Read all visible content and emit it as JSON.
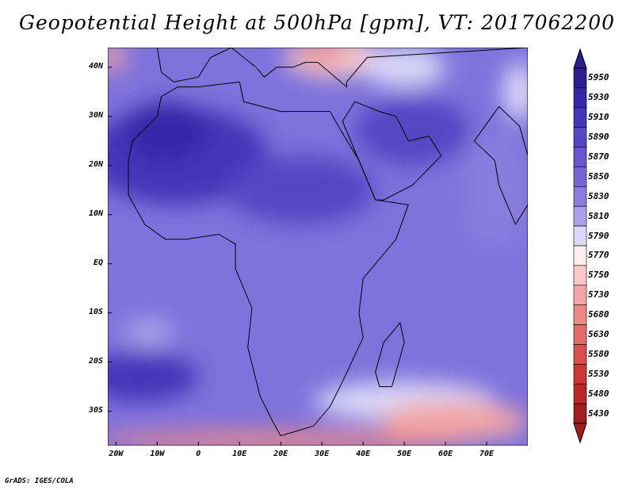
{
  "title": "Geopotential Height at 500hPa [gpm], VT: 2017062200",
  "credit": "GrADS: IGES/COLA",
  "lat_labels": [
    "40N",
    "30N",
    "20N",
    "10N",
    "EQ",
    "10S",
    "20S",
    "30S"
  ],
  "lon_labels": [
    "20W",
    "10W",
    "0",
    "10E",
    "20E",
    "30E",
    "40E",
    "50E",
    "60E",
    "70E"
  ],
  "colorbar": {
    "levels": [
      "5950",
      "5930",
      "5910",
      "5890",
      "5870",
      "5850",
      "5830",
      "5810",
      "5790",
      "5770",
      "5750",
      "5730",
      "5680",
      "5630",
      "5580",
      "5530",
      "5480",
      "5430"
    ],
    "colors": [
      "#2b1f8c",
      "#3527a8",
      "#4535b8",
      "#5546c4",
      "#6657cc",
      "#7666d3",
      "#8a7dde",
      "#a9a1e9",
      "#dcd8f7",
      "#fdeeee",
      "#f9c9c9",
      "#f2a5a5",
      "#ec8888",
      "#e36b6b",
      "#d94e4e",
      "#cc3838",
      "#b82828",
      "#a01e1e"
    ],
    "top_arrow_color": "#2b1f8c",
    "bottom_arrow_color": "#a01e1e"
  },
  "map": {
    "extent": {
      "lon_min": -22,
      "lon_max": 80,
      "lat_min": -37,
      "lat_max": 44
    },
    "background_color": "#7f72dc",
    "ocean_color": "#7a6ed9",
    "field_blobs": [
      {
        "name": "sahara-high",
        "lon": -5,
        "lat": 22,
        "rx_deg": 22,
        "ry_deg": 10,
        "color": "#4535b8"
      },
      {
        "name": "sahara-core",
        "lon": -8,
        "lat": 27,
        "rx_deg": 10,
        "ry_deg": 6,
        "color": "#3527a8"
      },
      {
        "name": "sahel-high",
        "lon": 25,
        "lat": 15,
        "rx_deg": 18,
        "ry_deg": 7,
        "color": "#5546c4"
      },
      {
        "name": "arabia-high",
        "lon": 52,
        "lat": 27,
        "rx_deg": 14,
        "ry_deg": 7,
        "color": "#5546c4"
      },
      {
        "name": "south-atlantic-high",
        "lon": -14,
        "lat": -23,
        "rx_deg": 14,
        "ry_deg": 5,
        "color": "#4535b8"
      },
      {
        "name": "south-atlantic-light",
        "lon": -12,
        "lat": -14,
        "rx_deg": 6,
        "ry_deg": 3,
        "color": "#a9a1e9"
      },
      {
        "name": "india-light",
        "lon": 72,
        "lat": 15,
        "rx_deg": 8,
        "ry_deg": 12,
        "color": "#8a7dde"
      },
      {
        "name": "southern-white",
        "lon": 50,
        "lat": -28,
        "rx_deg": 22,
        "ry_deg": 4,
        "color": "#dcd8f7"
      },
      {
        "name": "southern-pink",
        "lon": 62,
        "lat": -32,
        "rx_deg": 18,
        "ry_deg": 4,
        "color": "#f2a5a5"
      },
      {
        "name": "southern-red",
        "lon": 20,
        "lat": -36,
        "rx_deg": 45,
        "ry_deg": 2,
        "color": "#ec8888"
      },
      {
        "name": "turkey-pink",
        "lon": 33,
        "lat": 42,
        "rx_deg": 12,
        "ry_deg": 4,
        "color": "#f9c9c9"
      },
      {
        "name": "turkey-red",
        "lon": 30,
        "lat": 43,
        "rx_deg": 6,
        "ry_deg": 2,
        "color": "#ec8888"
      },
      {
        "name": "iran-light",
        "lon": 50,
        "lat": 40,
        "rx_deg": 10,
        "ry_deg": 4,
        "color": "#dcd8f7"
      },
      {
        "name": "nw-corner-pink",
        "lon": -21,
        "lat": 42,
        "rx_deg": 3,
        "ry_deg": 3,
        "color": "#f2a5a5"
      },
      {
        "name": "east-edge-white",
        "lon": 78,
        "lat": 35,
        "rx_deg": 4,
        "ry_deg": 6,
        "color": "#dcd8f7"
      }
    ],
    "coastline": [
      [
        -17,
        21
      ],
      [
        -16,
        25
      ],
      [
        -10,
        30
      ],
      [
        -9,
        34
      ],
      [
        -5,
        36
      ],
      [
        0,
        36
      ],
      [
        10,
        37
      ],
      [
        11,
        33
      ],
      [
        20,
        31
      ],
      [
        30,
        31
      ],
      [
        32,
        31
      ],
      [
        34,
        28
      ],
      [
        39,
        21
      ],
      [
        43,
        13
      ],
      [
        51,
        12
      ],
      [
        48,
        5
      ],
      [
        40,
        -3
      ],
      [
        39,
        -10
      ],
      [
        40,
        -15
      ],
      [
        35,
        -24
      ],
      [
        32,
        -29
      ],
      [
        28,
        -33
      ],
      [
        20,
        -35
      ],
      [
        18,
        -32
      ],
      [
        15,
        -27
      ],
      [
        12,
        -17
      ],
      [
        13,
        -9
      ],
      [
        9,
        -1
      ],
      [
        9,
        4
      ],
      [
        5,
        6
      ],
      [
        -3,
        5
      ],
      [
        -8,
        5
      ],
      [
        -13,
        8
      ],
      [
        -17,
        14
      ],
      [
        -17,
        21
      ]
    ],
    "madagascar": [
      [
        49,
        -12
      ],
      [
        50,
        -16
      ],
      [
        47,
        -25
      ],
      [
        44,
        -25
      ],
      [
        43,
        -22
      ],
      [
        45,
        -16
      ],
      [
        49,
        -12
      ]
    ],
    "arabia": [
      [
        35,
        29
      ],
      [
        39,
        21
      ],
      [
        43,
        13
      ],
      [
        45,
        13
      ],
      [
        52,
        16
      ],
      [
        59,
        22
      ],
      [
        56,
        26
      ],
      [
        51,
        25
      ],
      [
        48,
        30
      ],
      [
        44,
        31
      ],
      [
        38,
        33
      ],
      [
        35,
        29
      ]
    ],
    "europe_coast": [
      [
        -10,
        44
      ],
      [
        -9,
        39
      ],
      [
        -6,
        37
      ],
      [
        0,
        38
      ],
      [
        3,
        42
      ],
      [
        8,
        44
      ],
      [
        14,
        40
      ],
      [
        16,
        38
      ],
      [
        19,
        40
      ],
      [
        23,
        40
      ],
      [
        26,
        41
      ],
      [
        29,
        41
      ],
      [
        36,
        36
      ],
      [
        36,
        37
      ],
      [
        41,
        42
      ],
      [
        80,
        44
      ]
    ],
    "india": [
      [
        67,
        25
      ],
      [
        72,
        21
      ],
      [
        73,
        16
      ],
      [
        77,
        8
      ],
      [
        80,
        12
      ],
      [
        80,
        15
      ],
      [
        80,
        22
      ],
      [
        78,
        28
      ],
      [
        73,
        32
      ],
      [
        67,
        25
      ]
    ]
  }
}
